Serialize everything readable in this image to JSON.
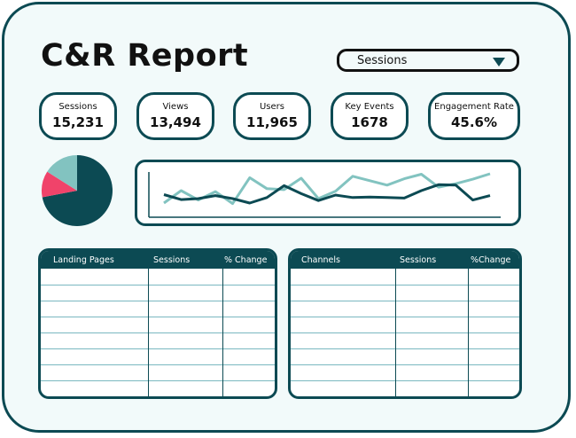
{
  "report": {
    "title": "C&R Report"
  },
  "dropdown": {
    "selected": "Sessions"
  },
  "kpis": [
    {
      "label": "Sessions",
      "value": "15,231"
    },
    {
      "label": "Views",
      "value": "13,494"
    },
    {
      "label": "Users",
      "value": "11,965"
    },
    {
      "label": "Key Events",
      "value": "1678"
    },
    {
      "label": "Engagement Rate",
      "value": "45.6%"
    }
  ],
  "colors": {
    "dark_teal": "#0c4a53",
    "light_teal": "#82c3c0",
    "pink": "#f0436a"
  },
  "chart_data": [
    {
      "type": "pie",
      "slices": [
        {
          "value": 0.72,
          "color": "#0c4a53"
        },
        {
          "value": 0.12,
          "color": "#f0436a"
        },
        {
          "value": 0.16,
          "color": "#82c3c0"
        }
      ]
    },
    {
      "type": "line",
      "x": [
        1,
        2,
        3,
        4,
        5,
        6,
        7,
        8,
        9,
        10,
        11,
        12,
        13,
        14,
        15,
        16,
        17,
        18,
        19,
        20
      ],
      "ylim": [
        0,
        10
      ],
      "series": [
        {
          "color": "#0c4a53",
          "values": [
            4.2,
            3.2,
            3.4,
            4.0,
            3.4,
            2.5,
            3.6,
            6.0,
            4.4,
            3.0,
            4.1,
            3.6,
            3.7,
            3.6,
            3.5,
            5.0,
            6.2,
            6.1,
            3.1,
            4.0
          ]
        },
        {
          "color": "#82c3c0",
          "values": [
            2.5,
            5.0,
            3.1,
            4.8,
            2.4,
            7.6,
            5.4,
            5.2,
            7.5,
            3.4,
            4.9,
            7.9,
            7.0,
            6.1,
            7.4,
            8.3,
            5.7,
            6.4,
            7.3,
            8.4
          ]
        }
      ]
    }
  ],
  "tables": [
    {
      "headers": [
        "Landing Pages",
        "Sessions",
        "% Change"
      ],
      "rows": 8
    },
    {
      "headers": [
        "Channels",
        "Sessions",
        "%Change"
      ],
      "rows": 8
    }
  ]
}
